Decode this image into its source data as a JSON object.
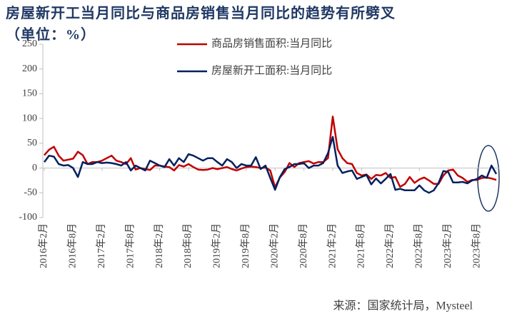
{
  "chart_data": {
    "type": "line",
    "title": "房屋新开工当月同比与商品房销售当月同比的趋势有所劈叉（单位：%）",
    "source": "来源：国家统计局，Mysteel",
    "categories": [
      "2016年2月",
      null,
      null,
      null,
      null,
      null,
      "2016年8月",
      null,
      null,
      null,
      null,
      null,
      "2017年2月",
      null,
      null,
      null,
      null,
      null,
      "2017年8月",
      null,
      null,
      null,
      null,
      null,
      "2018年2月",
      null,
      null,
      null,
      null,
      null,
      "2018年8月",
      null,
      null,
      null,
      null,
      null,
      "2019年2月",
      null,
      null,
      null,
      null,
      null,
      "2019年8月",
      null,
      null,
      null,
      null,
      null,
      "2020年2月",
      null,
      null,
      null,
      null,
      null,
      "2020年8月",
      null,
      null,
      null,
      null,
      null,
      "2021年2月",
      null,
      null,
      null,
      null,
      null,
      "2021年8月",
      null,
      null,
      null,
      null,
      null,
      "2022年2月",
      null,
      null,
      null,
      null,
      null,
      "2022年8月",
      null,
      null,
      null,
      null,
      null,
      "2023年2月",
      null,
      null,
      null,
      null,
      null,
      "2023年8月",
      null,
      null,
      null,
      null
    ],
    "series": [
      {
        "name": "商品房销售面积:当月同比",
        "color": "#c00000",
        "values": [
          26,
          37,
          43,
          25,
          15,
          17,
          19,
          33,
          26,
          8,
          12,
          12,
          15,
          20,
          25,
          15,
          12,
          8,
          20,
          -3,
          0,
          -2,
          -4,
          5,
          5,
          3,
          2,
          -5,
          6,
          3,
          8,
          2,
          -3,
          -4,
          -3,
          0,
          -2,
          0,
          2,
          -2,
          -5,
          -1,
          2,
          3,
          2,
          0,
          1,
          -5,
          -39,
          -19,
          -8,
          10,
          2,
          10,
          12,
          14,
          9,
          12,
          12,
          20,
          104,
          38,
          20,
          10,
          8,
          -10,
          -15,
          -13,
          -22,
          -14,
          -15,
          -10,
          -20,
          -18,
          -38,
          -32,
          -18,
          -30,
          -23,
          -19,
          -25,
          -32,
          -32,
          -15,
          -5,
          -3,
          -15,
          -20,
          -28,
          -24,
          -24,
          -20,
          -19,
          -21,
          -24
        ]
      },
      {
        "name": "房屋新开工面积:当月同比",
        "color": "#002060",
        "values": [
          12,
          25,
          23,
          8,
          5,
          6,
          0,
          -18,
          12,
          8,
          8,
          12,
          10,
          11,
          10,
          8,
          5,
          12,
          -5,
          5,
          0,
          -5,
          15,
          10,
          5,
          2,
          18,
          5,
          20,
          12,
          28,
          25,
          20,
          15,
          20,
          20,
          12,
          5,
          18,
          12,
          0,
          8,
          5,
          5,
          22,
          -2,
          5,
          -20,
          -44,
          -18,
          -2,
          2,
          8,
          8,
          10,
          0,
          5,
          5,
          10,
          30,
          63,
          5,
          -10,
          -7,
          -5,
          -22,
          -18,
          -14,
          -33,
          -21,
          -31,
          -22,
          -12,
          -44,
          -42,
          -45,
          -45,
          -45,
          -35,
          -45,
          -50,
          -45,
          -30,
          -6,
          -8,
          -29,
          -29,
          -28,
          -31,
          -25,
          -22,
          -15,
          -20,
          5,
          -12
        ]
      }
    ],
    "ylim": [
      -100,
      250
    ],
    "yticks": [
      -100,
      -50,
      0,
      50,
      100,
      150,
      200,
      250
    ]
  }
}
